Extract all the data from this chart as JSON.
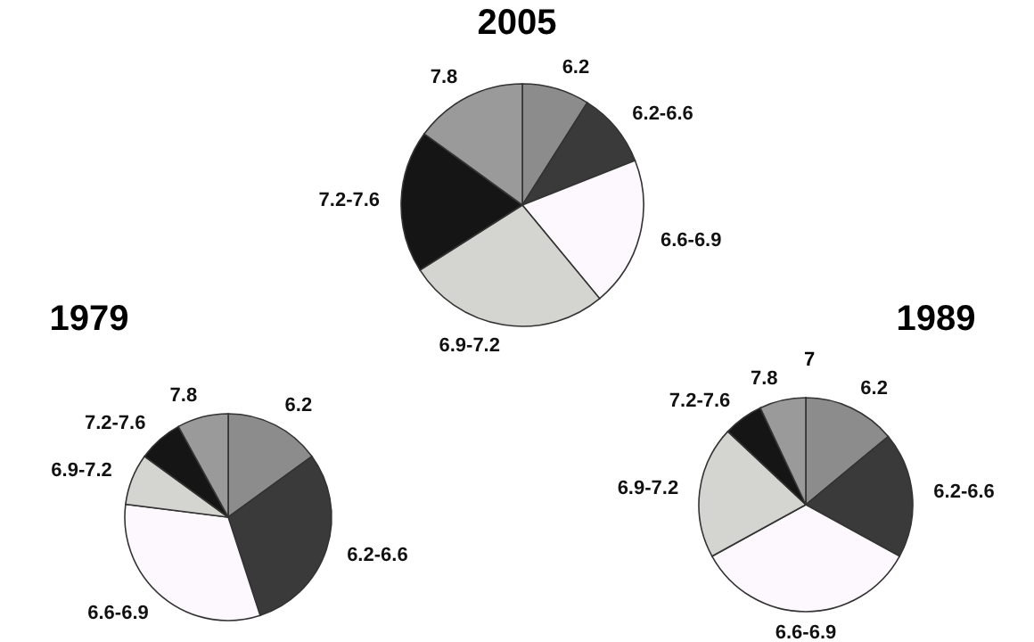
{
  "chart_data": [
    {
      "type": "pie",
      "title": "2005",
      "categories": [
        "6.2",
        "6.2-6.6",
        "6.6-6.9",
        "6.9-7.2",
        "7.2-7.6",
        "7.8"
      ],
      "values": [
        9,
        10,
        20,
        27,
        19,
        15
      ],
      "colors": [
        "#8c8c8c",
        "#3a3a3a",
        "#fdf8fd",
        "#d4d4d0",
        "#151515",
        "#9a9a9a"
      ]
    },
    {
      "type": "pie",
      "title": "1979",
      "categories": [
        "6.2",
        "6.2-6.6",
        "6.6-6.9",
        "6.9-7.2",
        "7.2-7.6",
        "7.8"
      ],
      "values": [
        15,
        30,
        32,
        8,
        7,
        8
      ],
      "colors": [
        "#8c8c8c",
        "#3a3a3a",
        "#fdf8fd",
        "#d4d4d0",
        "#151515",
        "#9a9a9a"
      ]
    },
    {
      "type": "pie",
      "title": "1989",
      "categories": [
        "6.2",
        "6.2-6.6",
        "6.6-6.9",
        "6.9-7.2",
        "7.2-7.6",
        "7.8"
      ],
      "values": [
        14,
        19,
        34,
        20,
        6,
        7
      ],
      "colors": [
        "#8c8c8c",
        "#3a3a3a",
        "#fdf8fd",
        "#d4d4d0",
        "#151515",
        "#9a9a9a"
      ],
      "annotations": [
        "7"
      ]
    }
  ]
}
